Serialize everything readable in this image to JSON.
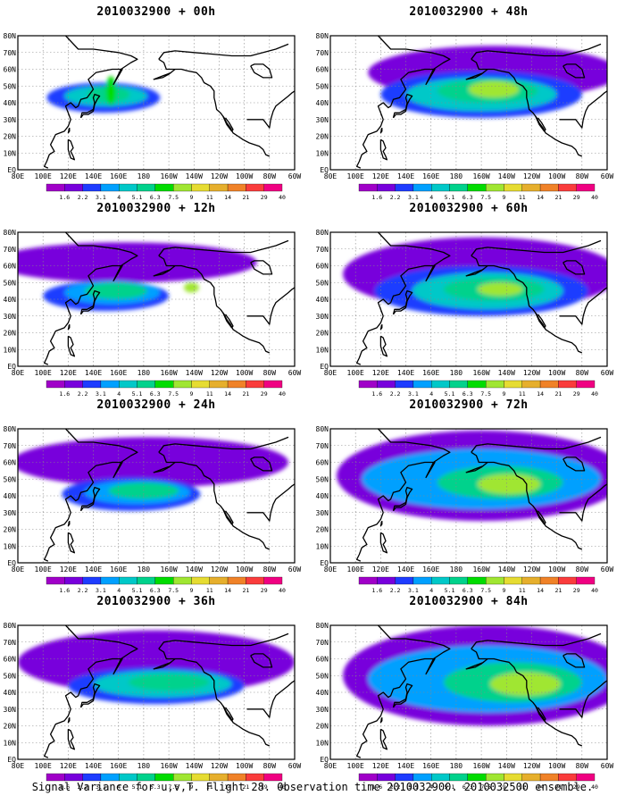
{
  "panels": [
    {
      "title": "2010032900 + 00h",
      "blobs": [
        {
          "lon": 148,
          "lat": 43,
          "rx": 45,
          "ry": 9,
          "level": 2
        },
        {
          "lon": 150,
          "lat": 44,
          "rx": 33,
          "ry": 6,
          "level": 4
        },
        {
          "lon": 152,
          "lat": 45,
          "rx": 17,
          "ry": 5,
          "level": 5
        },
        {
          "lon": 154,
          "lat": 47,
          "rx": 4,
          "ry": 9,
          "level": 6
        }
      ]
    },
    {
      "title": "2010032900 + 48h",
      "blobs": [
        {
          "lon": 210,
          "lat": 58,
          "rx": 100,
          "ry": 16,
          "level": 1
        },
        {
          "lon": 200,
          "lat": 45,
          "rx": 80,
          "ry": 14,
          "level": 2
        },
        {
          "lon": 200,
          "lat": 45,
          "rx": 60,
          "ry": 10,
          "level": 4
        },
        {
          "lon": 205,
          "lat": 47,
          "rx": 40,
          "ry": 7,
          "level": 5
        },
        {
          "lon": 210,
          "lat": 48,
          "rx": 20,
          "ry": 5,
          "level": 7
        }
      ]
    },
    {
      "title": "2010032900 + 12h",
      "blobs": [
        {
          "lon": 165,
          "lat": 62,
          "rx": 105,
          "ry": 12,
          "level": 1
        },
        {
          "lon": 150,
          "lat": 42,
          "rx": 50,
          "ry": 9,
          "level": 2
        },
        {
          "lon": 155,
          "lat": 44,
          "rx": 38,
          "ry": 7,
          "level": 3
        },
        {
          "lon": 158,
          "lat": 45,
          "rx": 25,
          "ry": 5,
          "level": 5
        },
        {
          "lon": 218,
          "lat": 47,
          "rx": 6,
          "ry": 3,
          "level": 7
        }
      ]
    },
    {
      "title": "2010032900 + 60h",
      "blobs": [
        {
          "lon": 200,
          "lat": 55,
          "rx": 110,
          "ry": 22,
          "level": 1
        },
        {
          "lon": 200,
          "lat": 45,
          "rx": 85,
          "ry": 15,
          "level": 2
        },
        {
          "lon": 205,
          "lat": 45,
          "rx": 60,
          "ry": 11,
          "level": 4
        },
        {
          "lon": 210,
          "lat": 46,
          "rx": 40,
          "ry": 7,
          "level": 5
        },
        {
          "lon": 215,
          "lat": 46,
          "rx": 18,
          "ry": 4,
          "level": 7
        }
      ]
    },
    {
      "title": "2010032900 + 24h",
      "blobs": [
        {
          "lon": 185,
          "lat": 60,
          "rx": 110,
          "ry": 15,
          "level": 1
        },
        {
          "lon": 170,
          "lat": 41,
          "rx": 55,
          "ry": 10,
          "level": 2
        },
        {
          "lon": 175,
          "lat": 42,
          "rx": 42,
          "ry": 7,
          "level": 3
        },
        {
          "lon": 180,
          "lat": 43,
          "rx": 28,
          "ry": 5,
          "level": 5
        }
      ]
    },
    {
      "title": "2010032900 + 72h",
      "blobs": [
        {
          "lon": 200,
          "lat": 52,
          "rx": 115,
          "ry": 27,
          "level": 1
        },
        {
          "lon": 200,
          "lat": 50,
          "rx": 95,
          "ry": 18,
          "level": 3
        },
        {
          "lon": 215,
          "lat": 48,
          "rx": 50,
          "ry": 10,
          "level": 5
        },
        {
          "lon": 222,
          "lat": 47,
          "rx": 25,
          "ry": 6,
          "level": 7
        }
      ]
    },
    {
      "title": "2010032900 + 36h",
      "blobs": [
        {
          "lon": 190,
          "lat": 58,
          "rx": 110,
          "ry": 19,
          "level": 1
        },
        {
          "lon": 190,
          "lat": 44,
          "rx": 70,
          "ry": 11,
          "level": 2
        },
        {
          "lon": 195,
          "lat": 45,
          "rx": 55,
          "ry": 8,
          "level": 4
        },
        {
          "lon": 200,
          "lat": 46,
          "rx": 32,
          "ry": 5,
          "level": 5
        }
      ]
    },
    {
      "title": "2010032900 + 84h",
      "blobs": [
        {
          "lon": 205,
          "lat": 50,
          "rx": 115,
          "ry": 30,
          "level": 1
        },
        {
          "lon": 205,
          "lat": 48,
          "rx": 95,
          "ry": 20,
          "level": 3
        },
        {
          "lon": 225,
          "lat": 46,
          "rx": 55,
          "ry": 12,
          "level": 5
        },
        {
          "lon": 235,
          "lat": 45,
          "rx": 28,
          "ry": 7,
          "level": 7
        }
      ]
    }
  ],
  "lat_labels": [
    "80N",
    "70N",
    "60N",
    "50N",
    "40N",
    "30N",
    "20N",
    "10N",
    "EQ"
  ],
  "lon_labels": [
    "80E",
    "100E",
    "120E",
    "140E",
    "160E",
    "180",
    "160W",
    "140W",
    "120W",
    "100W",
    "80W",
    "60W"
  ],
  "colorbar": {
    "labels": [
      "1.6",
      "2.2",
      "3.1",
      "4",
      "5.1",
      "6.3",
      "7.5",
      "9",
      "11",
      "14",
      "21",
      "29",
      "40"
    ],
    "colors": [
      "#a000c8",
      "#7800dc",
      "#1e3cff",
      "#00a0ff",
      "#00c8c8",
      "#00d28c",
      "#00dc00",
      "#a0e632",
      "#e6dc32",
      "#e6af2d",
      "#f08228",
      "#fa3c3c",
      "#f00082"
    ]
  },
  "footer": "Signal Variance for u,v,T. Flight 28. Observation time 2010032900. 2010032500 ensemble."
}
